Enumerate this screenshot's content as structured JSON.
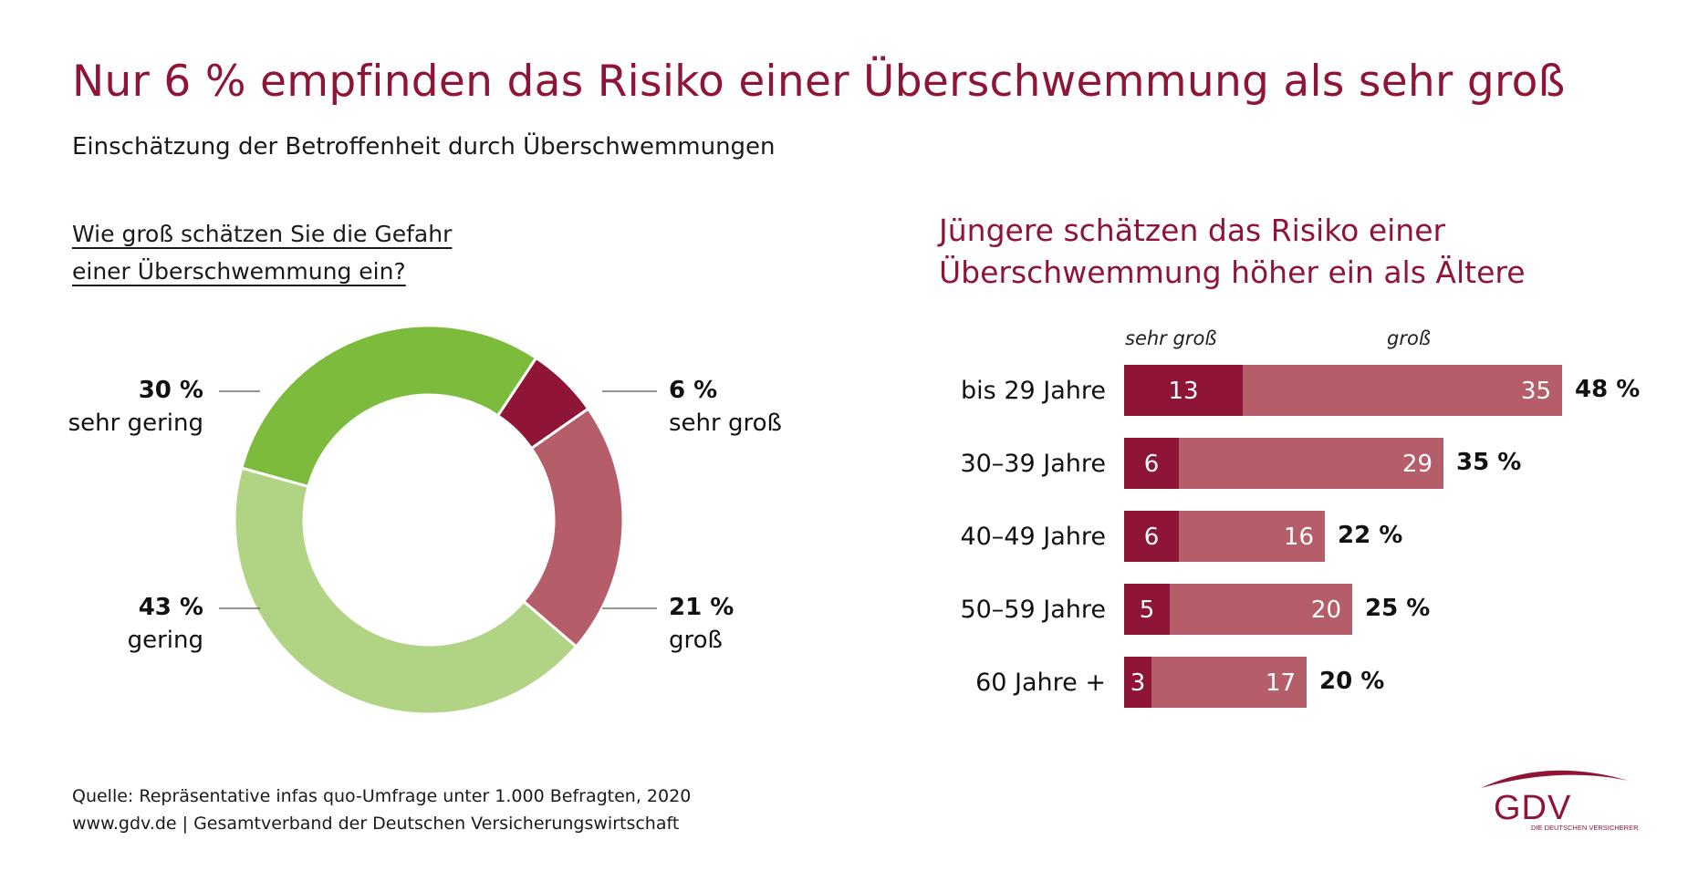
{
  "title": "Nur 6 % empfinden das Risiko einer Überschwemmung als sehr groß",
  "subtitle": "Einschätzung der Betroffenheit durch Überschwemmungen",
  "question": {
    "line1": "Wie groß schätzen Sie die Gefahr ",
    "line2": "einer Überschwemmung ein?"
  },
  "right_title": {
    "line1": "Jüngere schätzen das Risiko einer",
    "line2": "Überschwemmung höher ein als Ältere"
  },
  "colors": {
    "brand": "#8f1536",
    "sehr_gross": "#8f1536",
    "gross": "#b55e69",
    "gering": "#b1d384",
    "sehr_gering": "#7cbb3c",
    "leader": "#555555"
  },
  "chart_data": [
    {
      "type": "pie",
      "variant": "donut",
      "title": "Wie groß schätzen Sie die Gefahr einer Überschwemmung ein?",
      "slices": [
        {
          "label": "sehr groß",
          "value": 6,
          "value_label": "6 %",
          "color": "#8f1536"
        },
        {
          "label": "groß",
          "value": 21,
          "value_label": "21 %",
          "color": "#b55e69"
        },
        {
          "label": "gering",
          "value": 43,
          "value_label": "43 %",
          "color": "#b1d384"
        },
        {
          "label": "sehr gering",
          "value": 30,
          "value_label": "30 %",
          "color": "#7cbb3c"
        }
      ]
    },
    {
      "type": "bar",
      "orientation": "horizontal",
      "stacked": true,
      "title": "Jüngere schätzen das Risiko einer Überschwemmung höher ein als Ältere",
      "categories": [
        "bis 29 Jahre",
        "30–39 Jahre",
        "40–49 Jahre",
        "50–59 Jahre",
        "60 Jahre +"
      ],
      "series": [
        {
          "name": "sehr groß",
          "values": [
            13,
            6,
            6,
            5,
            3
          ],
          "color": "#8f1536"
        },
        {
          "name": "groß",
          "values": [
            35,
            29,
            16,
            20,
            17
          ],
          "color": "#b55e69"
        }
      ],
      "totals": [
        "48 %",
        "35 %",
        "22 %",
        "25 %",
        "20 %"
      ]
    }
  ],
  "footer": {
    "source": "Quelle: Repräsentative infas quo-Umfrage unter 1.000 Befragten, 2020",
    "web": "www.gdv.de | Gesamtverband der Deutschen Versicherungswirtschaft"
  },
  "logo": {
    "text": "GDV",
    "tagline": "DIE DEUTSCHEN VERSICHERER"
  }
}
